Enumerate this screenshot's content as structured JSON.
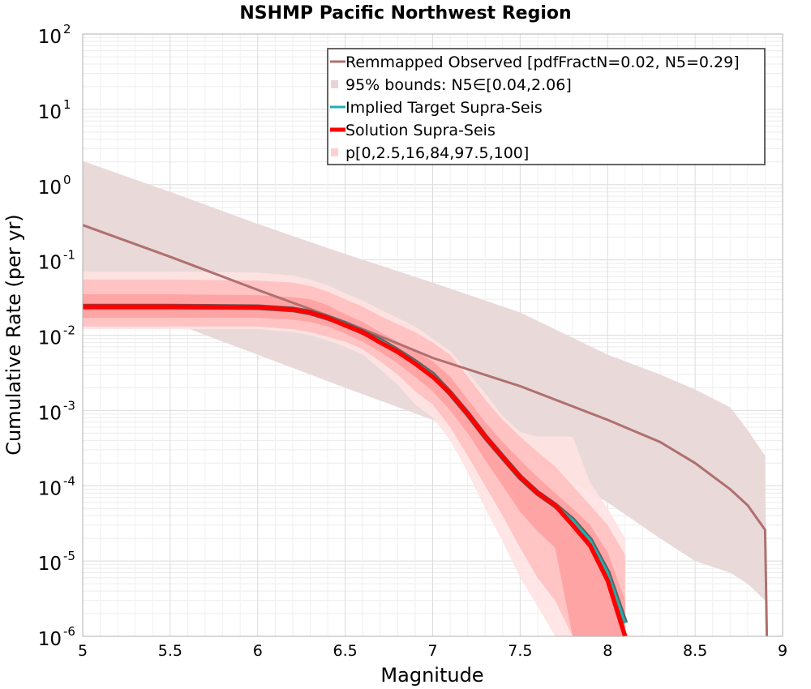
{
  "chart_data": {
    "type": "line",
    "title": "NSHMP Pacific Northwest Region",
    "xlabel": "Magnitude",
    "ylabel": "Cumulative Rate (per yr)",
    "xlim": [
      5,
      9
    ],
    "ylim": [
      1e-06,
      100
    ],
    "yscale": "log",
    "grid": true,
    "legend_position": "top-right",
    "x_ticks": [
      "5",
      "5.5",
      "6",
      "6.5",
      "7",
      "7.5",
      "8",
      "8.5",
      "9"
    ],
    "y_ticks": [
      {
        "base": "10",
        "exp": "-6",
        "value": 1e-06
      },
      {
        "base": "10",
        "exp": "-5",
        "value": 1e-05
      },
      {
        "base": "10",
        "exp": "-4",
        "value": 0.0001
      },
      {
        "base": "10",
        "exp": "-3",
        "value": 0.001
      },
      {
        "base": "10",
        "exp": "-2",
        "value": 0.01
      },
      {
        "base": "10",
        "exp": "-1",
        "value": 0.1
      },
      {
        "base": "10",
        "exp": "0",
        "value": 1
      },
      {
        "base": "10",
        "exp": "1",
        "value": 10
      },
      {
        "base": "10",
        "exp": "2",
        "value": 100
      }
    ],
    "legend": [
      {
        "label": "Remmapped Observed [pdfFractN=0.02, N5=0.29]",
        "kind": "line",
        "color": "#b07070"
      },
      {
        "label": "95% bounds: N5∈[0.04,2.06]",
        "kind": "band",
        "color": "#e8d4d4"
      },
      {
        "label": "Implied Target Supra-Seis",
        "kind": "line",
        "color": "#20b0b0"
      },
      {
        "label": "Solution Supra-Seis",
        "kind": "line",
        "color": "#ff0000"
      },
      {
        "label": "p[0,2.5,16,84,97.5,100]",
        "kind": "band",
        "color": "#ffd0d0"
      }
    ],
    "series": [
      {
        "name": "Remmapped Observed [pdfFractN=0.02, N5=0.29]",
        "color": "#b07070",
        "x": [
          5.0,
          5.5,
          6.0,
          6.5,
          7.0,
          7.5,
          8.0,
          8.3,
          8.5,
          8.7,
          8.8,
          8.9,
          8.91
        ],
        "y": [
          0.29,
          0.11,
          0.04,
          0.015,
          0.005,
          0.0021,
          0.00075,
          0.00038,
          0.0002,
          9e-05,
          5.5e-05,
          2.6e-05,
          1e-06
        ]
      },
      {
        "name": "95% bounds: N5∈[0.04,2.06]",
        "kind": "band",
        "color": "#e8d8d8",
        "x": [
          5.0,
          5.5,
          6.0,
          6.5,
          7.0,
          7.5,
          8.0,
          8.3,
          8.5,
          8.7,
          8.8,
          8.9,
          8.91
        ],
        "upper": [
          2.06,
          0.8,
          0.3,
          0.12,
          0.05,
          0.02,
          0.0055,
          0.003,
          0.0019,
          0.0011,
          0.00055,
          0.00025,
          1e-06
        ],
        "lower": [
          0.04,
          0.015,
          0.0055,
          0.002,
          0.00075,
          0.00027,
          6e-05,
          2e-05,
          1e-05,
          7e-06,
          5e-06,
          3e-06,
          1e-06
        ]
      },
      {
        "name": "Implied Target Supra-Seis",
        "color": "#20b0b0",
        "x": [
          5.0,
          5.5,
          6.0,
          6.2,
          6.3,
          6.4,
          6.5,
          6.6,
          6.7,
          6.8,
          6.9,
          7.0,
          7.1,
          7.2,
          7.3,
          7.4,
          7.5,
          7.6,
          7.7,
          7.8,
          7.9,
          8.0,
          8.1
        ],
        "y": [
          0.024,
          0.024,
          0.0235,
          0.022,
          0.02,
          0.017,
          0.014,
          0.011,
          0.0085,
          0.0062,
          0.0044,
          0.003,
          0.0017,
          0.0009,
          0.00045,
          0.00024,
          0.00013,
          8e-05,
          5.5e-05,
          3.5e-05,
          1.9e-05,
          7e-06,
          1.5e-06
        ]
      },
      {
        "name": "Solution Supra-Seis",
        "color": "#ff0000",
        "x": [
          5.0,
          5.5,
          6.0,
          6.2,
          6.3,
          6.4,
          6.5,
          6.6,
          6.7,
          6.8,
          6.9,
          7.0,
          7.1,
          7.2,
          7.3,
          7.4,
          7.5,
          7.6,
          7.7,
          7.8,
          7.9,
          8.0,
          8.1
        ],
        "y": [
          0.024,
          0.024,
          0.0235,
          0.022,
          0.02,
          0.017,
          0.0135,
          0.011,
          0.008,
          0.006,
          0.0042,
          0.0028,
          0.0017,
          0.0009,
          0.00045,
          0.00024,
          0.00013,
          8e-05,
          5.5e-05,
          3e-05,
          1.6e-05,
          5.5e-06,
          1e-06
        ]
      },
      {
        "name": "p[0,2.5,16,84,97.5,100]",
        "kind": "percentile_bands",
        "color": "#ff0000",
        "x": [
          5.0,
          5.5,
          6.0,
          6.2,
          6.3,
          6.4,
          6.5,
          6.6,
          6.7,
          6.8,
          6.9,
          7.0,
          7.1,
          7.2,
          7.3,
          7.4,
          7.5,
          7.6,
          7.7,
          7.8,
          7.9,
          8.0,
          8.1
        ],
        "p0": [
          0.012,
          0.012,
          0.012,
          0.011,
          0.01,
          0.0085,
          0.007,
          0.0055,
          0.0035,
          0.0022,
          0.0012,
          0.0008,
          0.0004,
          0.00015,
          5e-05,
          1.8e-05,
          6e-06,
          2.5e-06,
          1e-06,
          1e-06,
          1e-06,
          1e-06,
          1e-06
        ],
        "p2_5": [
          0.013,
          0.013,
          0.013,
          0.012,
          0.011,
          0.0095,
          0.0082,
          0.0065,
          0.0045,
          0.003,
          0.0018,
          0.0012,
          0.0006,
          0.00025,
          0.0001,
          4e-05,
          1.5e-05,
          6e-06,
          3e-06,
          1e-06,
          1e-06,
          1e-06,
          1e-06
        ],
        "p16": [
          0.017,
          0.017,
          0.017,
          0.016,
          0.015,
          0.013,
          0.0105,
          0.0082,
          0.006,
          0.0042,
          0.0028,
          0.0018,
          0.001,
          0.0005,
          0.00022,
          0.0001,
          4.5e-05,
          2.5e-05,
          1.5e-05,
          1e-06,
          1e-06,
          1e-06,
          1e-06
        ],
        "p84": [
          0.035,
          0.035,
          0.034,
          0.032,
          0.03,
          0.025,
          0.019,
          0.015,
          0.011,
          0.0082,
          0.0062,
          0.0045,
          0.0028,
          0.0014,
          0.0007,
          0.00038,
          0.00022,
          0.00013,
          8e-05,
          5e-05,
          3e-05,
          1.3e-05,
          3e-06
        ],
        "p97_5": [
          0.055,
          0.055,
          0.053,
          0.05,
          0.045,
          0.038,
          0.03,
          0.024,
          0.018,
          0.014,
          0.011,
          0.008,
          0.0055,
          0.0028,
          0.0014,
          0.00075,
          0.00045,
          0.00028,
          0.00018,
          0.0001,
          5.5e-05,
          3e-05,
          1.2e-05
        ],
        "p100": [
          0.07,
          0.07,
          0.068,
          0.062,
          0.055,
          0.046,
          0.036,
          0.029,
          0.022,
          0.017,
          0.013,
          0.009,
          0.0062,
          0.0033,
          0.0017,
          0.00085,
          0.00052,
          0.00045,
          0.00045,
          0.00045,
          0.00011,
          5e-05,
          2e-05
        ]
      }
    ]
  }
}
